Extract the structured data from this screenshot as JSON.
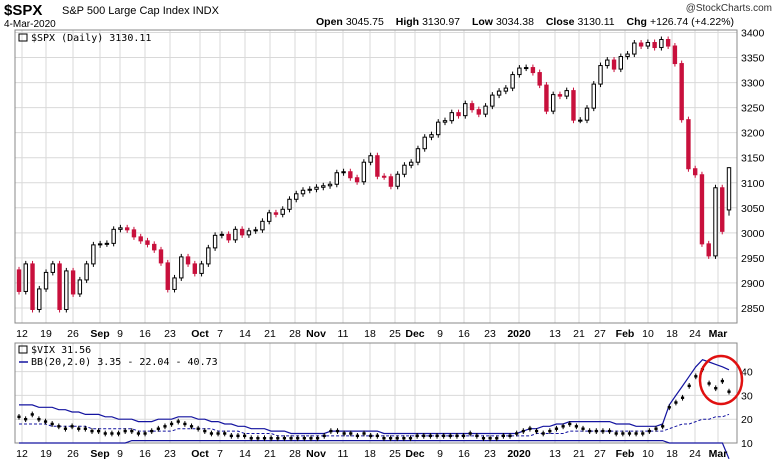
{
  "header": {
    "symbol": "$SPX",
    "name": "S&P 500 Large Cap Index INDX",
    "date": "4-Mar-2020",
    "credit": "@StockCharts.com",
    "ohlc": [
      {
        "label": "Open",
        "value": "3045.75"
      },
      {
        "label": "High",
        "value": "3130.97"
      },
      {
        "label": "Low",
        "value": "3034.38"
      },
      {
        "label": "Close",
        "value": "3130.11"
      },
      {
        "label": "Chg",
        "value": "+126.74 (+4.22%)"
      }
    ]
  },
  "colors": {
    "up": "#000000",
    "down": "#c8103c",
    "band": "#1414a0",
    "grid": "#d9d9d9",
    "circle": "#e01010"
  },
  "chart_data": [
    {
      "type": "candlestick",
      "legend": "$SPX (Daily) 3130.11",
      "ylim": [
        2820,
        3405
      ],
      "yticks": [
        2850,
        2900,
        2950,
        3000,
        3050,
        3100,
        3150,
        3200,
        3250,
        3300,
        3350,
        3400
      ],
      "x_labels": [
        "12",
        "19",
        "26",
        "Sep",
        "9",
        "16",
        "23",
        "Oct",
        "7",
        "14",
        "21",
        "28",
        "Nov",
        "11",
        "18",
        "25",
        "Dec",
        "9",
        "16",
        "23",
        "2020",
        "13",
        "21",
        "27",
        "Feb",
        "10",
        "18",
        "24",
        "Mar"
      ],
      "points": [
        [
          2926,
          2883
        ],
        [
          2883,
          2938
        ],
        [
          2938,
          2847
        ],
        [
          2847,
          2888
        ],
        [
          2888,
          2921
        ],
        [
          2921,
          2938
        ],
        [
          2938,
          2847
        ],
        [
          2847,
          2924
        ],
        [
          2924,
          2878
        ],
        [
          2878,
          2906
        ],
        [
          2906,
          2938
        ],
        [
          2938,
          2976
        ],
        [
          2976,
          2978
        ],
        [
          2978,
          2979
        ],
        [
          2979,
          3007
        ],
        [
          3007,
          3010
        ],
        [
          3010,
          3006
        ],
        [
          3006,
          2992
        ],
        [
          2992,
          2984
        ],
        [
          2984,
          2977
        ],
        [
          2977,
          2966
        ],
        [
          2966,
          2940
        ],
        [
          2940,
          2887
        ],
        [
          2887,
          2910
        ],
        [
          2910,
          2952
        ],
        [
          2952,
          2938
        ],
        [
          2938,
          2919
        ],
        [
          2919,
          2938
        ],
        [
          2938,
          2970
        ],
        [
          2970,
          2995
        ],
        [
          2995,
          2997
        ],
        [
          2997,
          2986
        ],
        [
          2986,
          3007
        ],
        [
          3007,
          2996
        ],
        [
          2996,
          3004
        ],
        [
          3004,
          3006
        ],
        [
          3006,
          3023
        ],
        [
          3023,
          3040
        ],
        [
          3040,
          3037
        ],
        [
          3037,
          3047
        ],
        [
          3047,
          3067
        ],
        [
          3067,
          3078
        ],
        [
          3078,
          3085
        ],
        [
          3085,
          3087
        ],
        [
          3087,
          3091
        ],
        [
          3091,
          3094
        ],
        [
          3094,
          3097
        ],
        [
          3097,
          3120
        ],
        [
          3120,
          3122
        ],
        [
          3122,
          3110
        ],
        [
          3110,
          3102
        ],
        [
          3102,
          3141
        ],
        [
          3141,
          3154
        ],
        [
          3154,
          3113
        ],
        [
          3113,
          3112
        ],
        [
          3112,
          3093
        ],
        [
          3093,
          3117
        ],
        [
          3117,
          3135
        ],
        [
          3135,
          3141
        ],
        [
          3141,
          3168
        ],
        [
          3168,
          3191
        ],
        [
          3191,
          3196
        ],
        [
          3196,
          3221
        ],
        [
          3221,
          3224
        ],
        [
          3224,
          3240
        ],
        [
          3240,
          3234
        ],
        [
          3234,
          3258
        ],
        [
          3258,
          3246
        ],
        [
          3246,
          3237
        ],
        [
          3237,
          3253
        ],
        [
          3253,
          3275
        ],
        [
          3275,
          3283
        ],
        [
          3283,
          3289
        ],
        [
          3289,
          3316
        ],
        [
          3316,
          3329
        ],
        [
          3329,
          3330
        ],
        [
          3330,
          3320
        ],
        [
          3320,
          3295
        ],
        [
          3295,
          3243
        ],
        [
          3243,
          3276
        ],
        [
          3276,
          3273
        ],
        [
          3273,
          3284
        ],
        [
          3284,
          3225
        ],
        [
          3225,
          3225
        ],
        [
          3225,
          3249
        ],
        [
          3249,
          3297
        ],
        [
          3297,
          3334
        ],
        [
          3334,
          3345
        ],
        [
          3345,
          3327
        ],
        [
          3327,
          3352
        ],
        [
          3352,
          3357
        ],
        [
          3357,
          3379
        ],
        [
          3379,
          3373
        ],
        [
          3373,
          3380
        ],
        [
          3380,
          3370
        ],
        [
          3370,
          3386
        ],
        [
          3386,
          3373
        ],
        [
          3373,
          3338
        ],
        [
          3338,
          3226
        ],
        [
          3226,
          3128
        ],
        [
          3128,
          3116
        ],
        [
          3116,
          2978
        ],
        [
          2978,
          2954
        ],
        [
          2954,
          3090
        ],
        [
          3090,
          3003
        ],
        [
          3003,
          3130
        ]
      ],
      "ohlc_current": {
        "open": 3045.75,
        "high": 3130.97,
        "low": 3034.38,
        "close": 3130.11
      }
    },
    {
      "type": "line",
      "legend": "$VIX 31.56",
      "bb_legend": "BB(20,2.0) 3.35 - 22.04 - 40.73",
      "ylim": [
        10,
        52
      ],
      "yticks": [
        10,
        20,
        30,
        40
      ],
      "x_labels": [
        "12",
        "19",
        "26",
        "Sep",
        "9",
        "16",
        "23",
        "Oct",
        "7",
        "14",
        "21",
        "28",
        "Nov",
        "11",
        "18",
        "25",
        "Dec",
        "9",
        "16",
        "23",
        "2020",
        "13",
        "21",
        "27",
        "Feb",
        "10",
        "18",
        "24",
        "Mar"
      ],
      "vix": [
        21,
        20,
        22,
        20,
        19,
        18,
        17,
        16,
        17,
        16,
        16,
        15,
        15,
        14,
        14,
        14,
        15,
        15,
        14,
        14,
        15,
        16,
        17,
        18,
        19,
        18,
        17,
        16,
        15,
        14,
        14,
        14,
        13,
        13,
        13,
        12,
        12,
        12,
        12,
        12,
        12,
        12,
        12,
        12,
        12,
        12,
        13,
        15,
        15,
        14,
        14,
        13,
        14,
        13,
        13,
        12,
        12,
        12,
        12,
        12,
        13,
        13,
        13,
        13,
        13,
        13,
        13,
        13,
        14,
        13,
        12,
        12,
        12,
        13,
        13,
        14,
        15,
        16,
        15,
        14,
        15,
        16,
        17,
        18,
        17,
        16,
        15,
        15,
        15,
        15,
        14,
        14,
        14,
        14,
        14,
        15,
        16,
        17,
        25,
        27,
        29,
        34,
        38,
        41,
        35,
        33,
        36,
        31.56
      ],
      "bb_upper": [
        26,
        26,
        26,
        25,
        25,
        25,
        24,
        24,
        23,
        23,
        22,
        22,
        22,
        21,
        21,
        20,
        20,
        20,
        19,
        19,
        19,
        20,
        20,
        20,
        21,
        21,
        21,
        20,
        20,
        19,
        19,
        18,
        18,
        17,
        17,
        16,
        16,
        16,
        15,
        15,
        15,
        14,
        14,
        14,
        14,
        14,
        14,
        15,
        15,
        15,
        15,
        15,
        15,
        15,
        15,
        14,
        14,
        14,
        14,
        14,
        14,
        14,
        14,
        14,
        14,
        14,
        14,
        14,
        14,
        14,
        14,
        14,
        14,
        14,
        14,
        14,
        15,
        16,
        16,
        17,
        17,
        18,
        18,
        19,
        19,
        19,
        19,
        19,
        19,
        19,
        18,
        18,
        18,
        17,
        17,
        17,
        17,
        18,
        26,
        30,
        34,
        38,
        42,
        45,
        44,
        43,
        42,
        40.73
      ],
      "bb_middle": [
        18,
        18,
        18,
        18,
        18,
        17,
        17,
        17,
        17,
        17,
        17,
        16,
        16,
        16,
        16,
        16,
        16,
        16,
        15,
        15,
        15,
        15,
        15,
        15,
        16,
        16,
        16,
        16,
        16,
        16,
        15,
        15,
        15,
        15,
        14,
        14,
        14,
        14,
        14,
        13,
        13,
        13,
        13,
        13,
        13,
        13,
        13,
        13,
        13,
        13,
        13,
        13,
        13,
        13,
        13,
        13,
        13,
        13,
        13,
        13,
        13,
        13,
        13,
        13,
        13,
        13,
        13,
        13,
        13,
        13,
        13,
        13,
        13,
        13,
        13,
        13,
        13,
        13,
        14,
        14,
        14,
        14,
        14,
        15,
        15,
        15,
        15,
        15,
        15,
        15,
        15,
        15,
        15,
        15,
        15,
        15,
        15,
        15,
        16,
        17,
        18,
        18,
        19,
        20,
        20,
        21,
        21,
        22.04
      ],
      "bb_lower": [
        10,
        10,
        10,
        10,
        10,
        10,
        10,
        10,
        10,
        10,
        10,
        10,
        10,
        10,
        10,
        10,
        10,
        11,
        11,
        11,
        11,
        11,
        11,
        11,
        11,
        11,
        11,
        11,
        11,
        11,
        11,
        11,
        11,
        11,
        11,
        11,
        11,
        11,
        11,
        11,
        11,
        11,
        11,
        11,
        11,
        11,
        11,
        11,
        11,
        11,
        11,
        11,
        11,
        11,
        11,
        11,
        11,
        11,
        11,
        11,
        11,
        11,
        11,
        11,
        11,
        11,
        11,
        11,
        11,
        11,
        11,
        11,
        11,
        11,
        11,
        11,
        11,
        11,
        11,
        11,
        11,
        11,
        11,
        11,
        11,
        11,
        11,
        11,
        11,
        11,
        11,
        11,
        11,
        11,
        11,
        11,
        11,
        11,
        10,
        10,
        10,
        10,
        10,
        10,
        10,
        10,
        10,
        3.35
      ]
    }
  ]
}
